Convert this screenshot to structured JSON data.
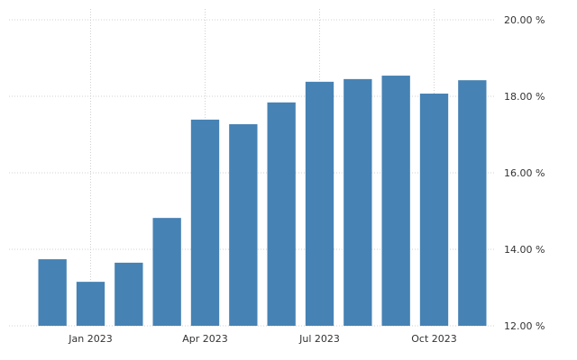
{
  "chart_data": {
    "type": "bar",
    "categories": [
      null,
      "Jan 2023",
      null,
      null,
      "Apr 2023",
      null,
      null,
      "Jul 2023",
      null,
      null,
      "Oct 2023",
      null
    ],
    "values": [
      13.74,
      13.15,
      13.65,
      14.82,
      17.39,
      17.27,
      17.84,
      18.38,
      18.45,
      18.54,
      18.07,
      18.42
    ],
    "color": "#4682b4",
    "ylim": [
      12,
      20
    ],
    "yticks": [
      {
        "value": 12,
        "label": "12.00 %"
      },
      {
        "value": 14,
        "label": "14.00 %"
      },
      {
        "value": 16,
        "label": "16.00 %"
      },
      {
        "value": 18,
        "label": "18.00 %"
      },
      {
        "value": 20,
        "label": "20.00 %"
      }
    ],
    "grid": true
  }
}
